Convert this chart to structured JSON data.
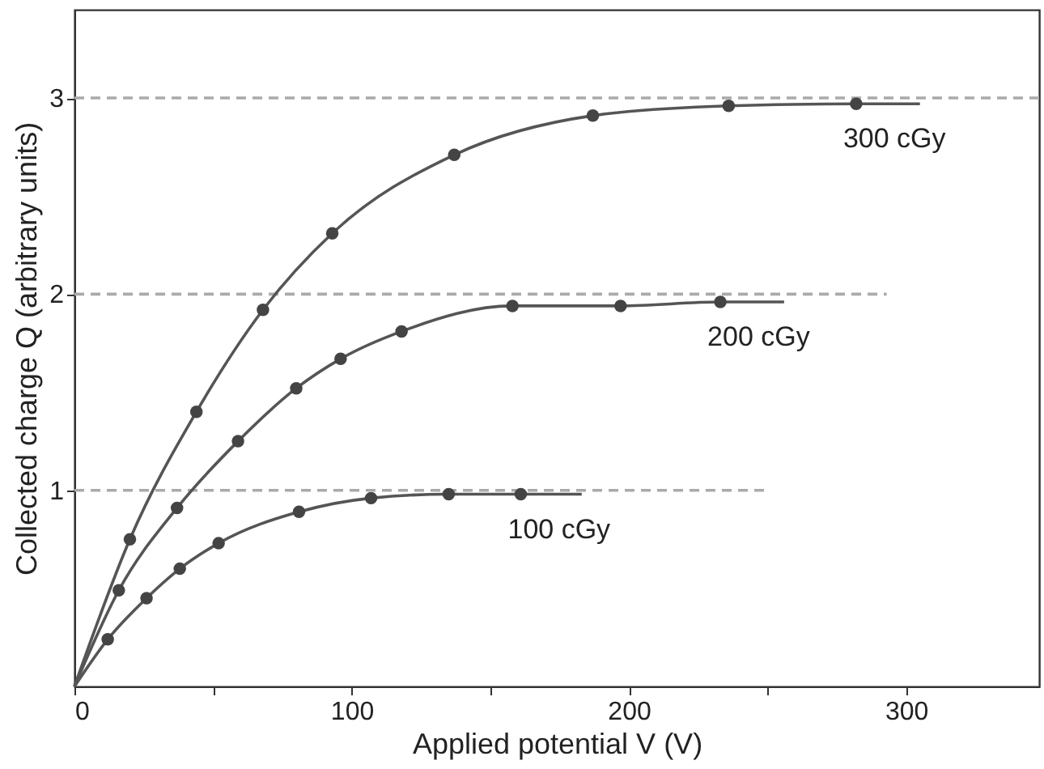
{
  "chart_data": {
    "type": "line",
    "xlabel": "Applied potential V (V)",
    "ylabel": "Collected charge Q (arbitrary units)",
    "xlim": [
      0,
      348
    ],
    "ylim": [
      0,
      3.45
    ],
    "xticks": [
      0,
      {
        "value": 50,
        "label": null
      },
      100,
      {
        "value": 150,
        "label": null
      },
      200,
      {
        "value": 250,
        "label": null
      },
      300
    ],
    "yticks": [
      1,
      2,
      3
    ],
    "series": [
      {
        "type": "line",
        "line_style": "dashed",
        "color": "#aaaaaa",
        "x": [
          0,
          348
        ],
        "values": [
          3,
          3
        ]
      },
      {
        "type": "line",
        "line_style": "dashed",
        "color": "#aaaaaa",
        "x": [
          0,
          293
        ],
        "values": [
          2,
          2
        ]
      },
      {
        "type": "line",
        "line_style": "dashed",
        "color": "#aaaaaa",
        "x": [
          0,
          250
        ],
        "values": [
          1,
          1
        ]
      },
      {
        "line_style": "solid",
        "color": "#555555",
        "x": [
          0,
          20,
          44,
          68,
          93,
          137,
          187,
          236,
          282,
          305
        ],
        "values": [
          0,
          0.75,
          1.4,
          1.92,
          2.31,
          2.71,
          2.91,
          2.96,
          2.97,
          2.97
        ]
      },
      {
        "line_style": "solid",
        "color": "#555555",
        "x": [
          0,
          16,
          37,
          59,
          80,
          96,
          118,
          158,
          197,
          233,
          256
        ],
        "values": [
          0,
          0.49,
          0.91,
          1.25,
          1.52,
          1.67,
          1.81,
          1.94,
          1.94,
          1.96,
          1.96
        ]
      },
      {
        "line_style": "solid",
        "color": "#555555",
        "x": [
          0,
          12,
          26,
          38,
          52,
          81,
          107,
          135,
          161,
          183
        ],
        "values": [
          0,
          0.24,
          0.45,
          0.6,
          0.73,
          0.89,
          0.96,
          0.98,
          0.98,
          0.98
        ]
      },
      {
        "type": "scatter",
        "name": "300 cGy",
        "marker": "circle",
        "color": "#444444",
        "x": [
          20,
          44,
          68,
          93,
          137,
          187,
          236,
          282
        ],
        "values": [
          0.75,
          1.4,
          1.92,
          2.31,
          2.71,
          2.91,
          2.96,
          2.97
        ]
      },
      {
        "type": "scatter",
        "name": "200 cGy",
        "marker": "circle",
        "color": "#444444",
        "x": [
          16,
          37,
          59,
          80,
          96,
          118,
          158,
          197,
          233
        ],
        "values": [
          0.49,
          0.91,
          1.25,
          1.52,
          1.67,
          1.81,
          1.94,
          1.94,
          1.96
        ]
      },
      {
        "type": "scatter",
        "name": "100 cGy",
        "marker": "circle",
        "color": "#444444",
        "x": [
          12,
          26,
          38,
          52,
          81,
          107,
          135,
          161
        ],
        "values": [
          0.24,
          0.45,
          0.6,
          0.73,
          0.89,
          0.96,
          0.98,
          0.98
        ]
      }
    ]
  }
}
